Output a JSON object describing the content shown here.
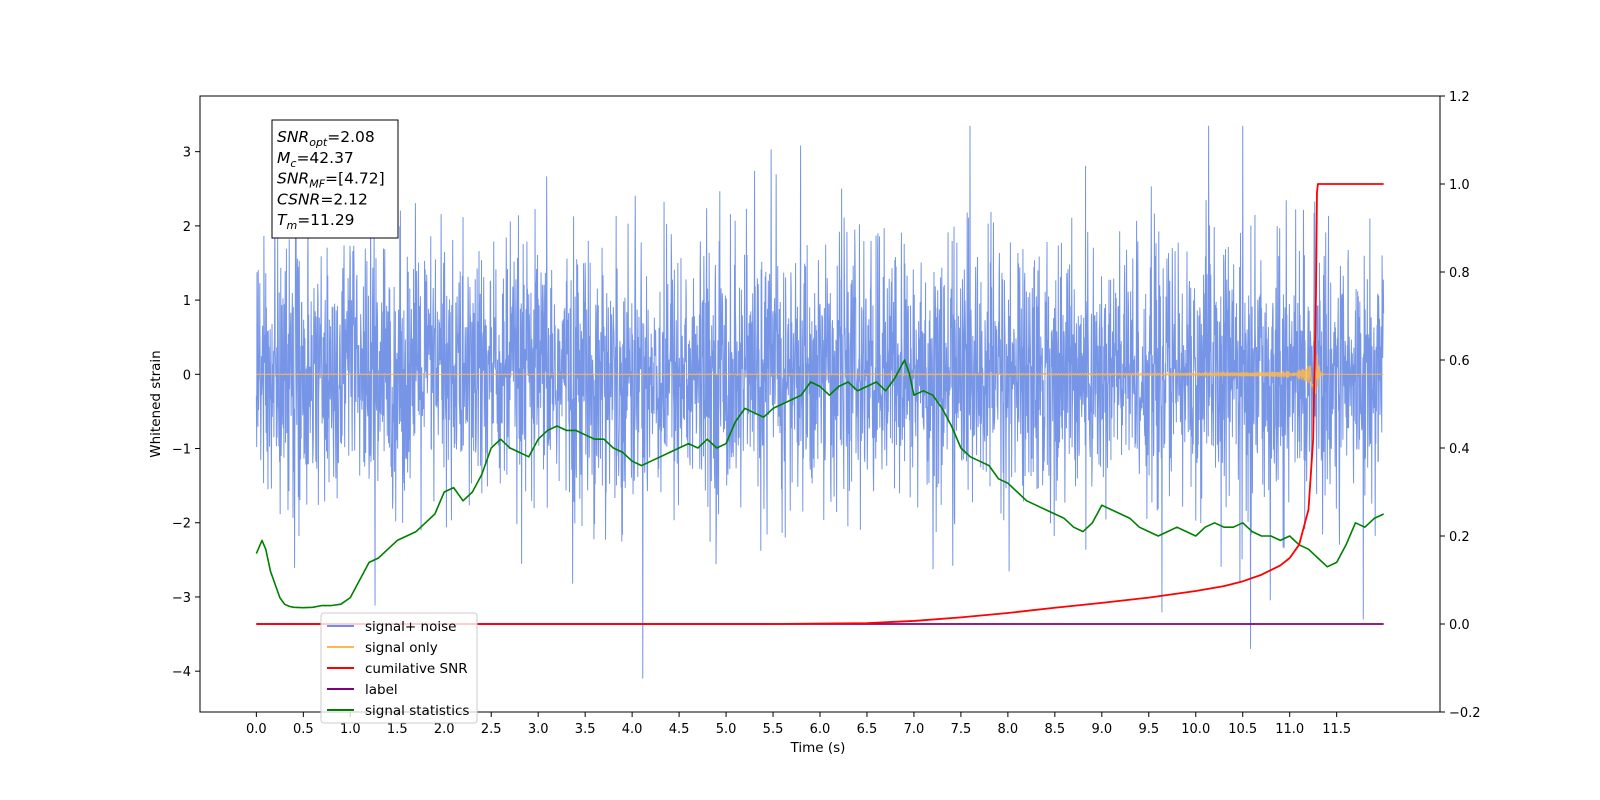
{
  "chart_data": {
    "type": "line",
    "xlabel": "Time (s)",
    "ylabel": "Whitened strain",
    "xlim": [
      -0.6,
      12.6
    ],
    "ylim": [
      -4.55,
      3.75
    ],
    "y2lim": [
      -0.2,
      1.2
    ],
    "x_ticks": [
      "0.0",
      "0.5",
      "1.0",
      "1.5",
      "2.0",
      "2.5",
      "3.0",
      "3.5",
      "4.0",
      "4.5",
      "5.0",
      "5.5",
      "6.0",
      "6.5",
      "7.0",
      "7.5",
      "8.0",
      "8.5",
      "9.0",
      "9.5",
      "10.0",
      "10.5",
      "11.0",
      "11.5"
    ],
    "x_tick_values": [
      0,
      0.5,
      1,
      1.5,
      2,
      2.5,
      3,
      3.5,
      4,
      4.5,
      5,
      5.5,
      6,
      6.5,
      7,
      7.5,
      8,
      8.5,
      9,
      9.5,
      10,
      10.5,
      11,
      11.5
    ],
    "y_ticks": [
      "3",
      "2",
      "1",
      "0",
      "−1",
      "−2",
      "−3",
      "−4"
    ],
    "y_tick_values": [
      3,
      2,
      1,
      0,
      -1,
      -2,
      -3,
      -4
    ],
    "y2_ticks": [
      "1.2",
      "1.0",
      "0.8",
      "0.6",
      "0.4",
      "0.2",
      "0.0",
      "−0.2"
    ],
    "y2_tick_values": [
      1.2,
      1.0,
      0.8,
      0.6,
      0.4,
      0.2,
      0.0,
      -0.2
    ],
    "annotation": [
      {
        "base": "SNR",
        "sub": "opt",
        "value": "=2.08"
      },
      {
        "base": "M",
        "sub": "c",
        "value": "=42.37"
      },
      {
        "base": "SNR",
        "sub": "MF",
        "value": "=[4.72]"
      },
      {
        "base": "CSNR",
        "sub": "",
        "value": "=2.12"
      },
      {
        "base": "T",
        "sub": "m",
        "value": "=11.29"
      }
    ],
    "legend": {
      "placement": "lower-left",
      "entries": [
        {
          "name": "signal+ noise",
          "color": "#6f8fe6"
        },
        {
          "name": "signal only",
          "color": "#ffb84d"
        },
        {
          "name": "cumilative SNR",
          "color": "#ff0000"
        },
        {
          "name": "label",
          "color": "#800080"
        },
        {
          "name": "signal statistics",
          "color": "#008000"
        }
      ]
    },
    "series": [
      {
        "name": "signal+ noise",
        "axis": "left",
        "color": "#6f8fe6",
        "x_range": [
          0.0,
          12.0
        ],
        "amplitude_sd": 0.85,
        "y_extent": [
          -4.1,
          3.35
        ]
      },
      {
        "name": "signal only",
        "axis": "left",
        "color": "#ffb84d",
        "x_range": [
          0.0,
          12.0
        ],
        "merger_time": 11.29
      },
      {
        "name": "cumilative SNR",
        "axis": "right",
        "color": "#ff0000",
        "x": [
          0,
          5.5,
          6.5,
          7.0,
          7.5,
          8.0,
          8.5,
          9.0,
          9.5,
          10.0,
          10.3,
          10.5,
          10.7,
          10.9,
          11.0,
          11.1,
          11.2,
          11.25,
          11.28,
          11.29,
          11.3,
          12.0
        ],
        "y": [
          0,
          0,
          0.002,
          0.007,
          0.015,
          0.025,
          0.037,
          0.048,
          0.06,
          0.075,
          0.086,
          0.097,
          0.112,
          0.133,
          0.15,
          0.18,
          0.26,
          0.42,
          0.75,
          0.98,
          1.0,
          1.0
        ]
      },
      {
        "name": "label",
        "axis": "right",
        "color": "#800080",
        "x": [
          0,
          12.0
        ],
        "y": [
          0,
          0
        ]
      },
      {
        "name": "signal statistics",
        "axis": "right",
        "color": "#008000",
        "x": [
          0,
          0.06,
          0.1,
          0.15,
          0.2,
          0.25,
          0.3,
          0.35,
          0.4,
          0.5,
          0.6,
          0.7,
          0.8,
          0.9,
          1.0,
          1.1,
          1.2,
          1.3,
          1.4,
          1.5,
          1.6,
          1.7,
          1.8,
          1.9,
          2.0,
          2.1,
          2.2,
          2.3,
          2.4,
          2.5,
          2.6,
          2.7,
          2.8,
          2.9,
          3.0,
          3.1,
          3.2,
          3.3,
          3.4,
          3.5,
          3.6,
          3.7,
          3.8,
          3.9,
          4.0,
          4.1,
          4.2,
          4.3,
          4.4,
          4.5,
          4.6,
          4.7,
          4.8,
          4.9,
          5.0,
          5.1,
          5.2,
          5.3,
          5.4,
          5.5,
          5.6,
          5.7,
          5.8,
          5.9,
          6.0,
          6.1,
          6.2,
          6.3,
          6.4,
          6.5,
          6.6,
          6.7,
          6.8,
          6.9,
          6.95,
          7.0,
          7.1,
          7.2,
          7.3,
          7.4,
          7.5,
          7.6,
          7.7,
          7.8,
          7.9,
          8.0,
          8.1,
          8.2,
          8.3,
          8.4,
          8.5,
          8.6,
          8.7,
          8.8,
          8.9,
          9.0,
          9.1,
          9.2,
          9.3,
          9.4,
          9.5,
          9.6,
          9.7,
          9.8,
          9.9,
          10.0,
          10.1,
          10.2,
          10.3,
          10.4,
          10.5,
          10.6,
          10.7,
          10.8,
          10.9,
          11.0,
          11.1,
          11.2,
          11.3,
          11.4,
          11.5,
          11.6,
          11.7,
          11.8,
          11.9,
          12.0
        ],
        "y": [
          0.16,
          0.19,
          0.17,
          0.12,
          0.09,
          0.06,
          0.045,
          0.04,
          0.038,
          0.037,
          0.038,
          0.042,
          0.042,
          0.045,
          0.06,
          0.1,
          0.14,
          0.15,
          0.17,
          0.19,
          0.2,
          0.21,
          0.23,
          0.25,
          0.3,
          0.31,
          0.28,
          0.3,
          0.34,
          0.4,
          0.42,
          0.4,
          0.39,
          0.38,
          0.42,
          0.44,
          0.45,
          0.44,
          0.44,
          0.43,
          0.42,
          0.42,
          0.4,
          0.39,
          0.37,
          0.36,
          0.37,
          0.38,
          0.39,
          0.4,
          0.41,
          0.4,
          0.42,
          0.4,
          0.41,
          0.46,
          0.49,
          0.48,
          0.47,
          0.49,
          0.5,
          0.51,
          0.52,
          0.55,
          0.54,
          0.52,
          0.54,
          0.55,
          0.53,
          0.54,
          0.55,
          0.53,
          0.56,
          0.6,
          0.57,
          0.52,
          0.53,
          0.52,
          0.49,
          0.45,
          0.4,
          0.38,
          0.37,
          0.36,
          0.33,
          0.32,
          0.3,
          0.28,
          0.27,
          0.26,
          0.25,
          0.24,
          0.22,
          0.21,
          0.23,
          0.27,
          0.26,
          0.25,
          0.24,
          0.22,
          0.21,
          0.2,
          0.21,
          0.22,
          0.21,
          0.2,
          0.22,
          0.23,
          0.22,
          0.22,
          0.23,
          0.21,
          0.2,
          0.2,
          0.19,
          0.2,
          0.18,
          0.17,
          0.15,
          0.13,
          0.14,
          0.18,
          0.23,
          0.22,
          0.24,
          0.25
        ]
      }
    ]
  }
}
